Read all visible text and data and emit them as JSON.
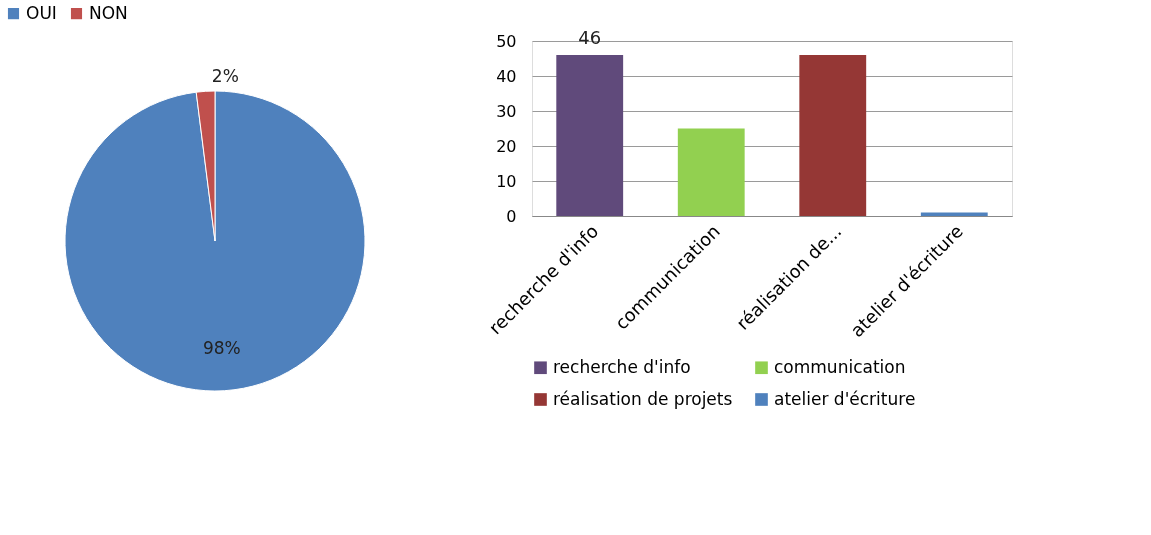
{
  "chart_data": [
    {
      "type": "pie",
      "categories": [
        "OUI",
        "NON"
      ],
      "values": [
        98,
        2
      ],
      "colors": [
        "#4f81bd",
        "#c0504d"
      ],
      "value_labels": [
        "98%",
        "2%"
      ],
      "legend": "top"
    },
    {
      "type": "bar",
      "categories": [
        "recherche d'info",
        "communication",
        "réalisation de...",
        "atelier d'écriture"
      ],
      "series": [
        {
          "name": "recherche d'info",
          "color": "#604a7b",
          "values": [
            46,
            null,
            null,
            null
          ]
        },
        {
          "name": "communication",
          "color": "#92d050",
          "values": [
            null,
            25,
            null,
            null
          ]
        },
        {
          "name": "réalisation de projets",
          "color": "#953735",
          "values": [
            null,
            null,
            46,
            null
          ]
        },
        {
          "name": "atelier d'écriture",
          "color": "#4f81bd",
          "values": [
            null,
            null,
            null,
            1
          ]
        }
      ],
      "value_labels": [
        "46",
        null,
        null,
        null
      ],
      "ylim": [
        0,
        50
      ],
      "yticks": [
        0,
        10,
        20,
        30,
        40,
        50
      ],
      "grid": "y",
      "legend": "bottom"
    }
  ]
}
